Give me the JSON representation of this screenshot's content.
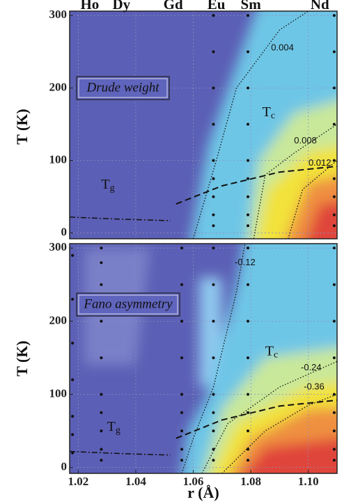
{
  "chart_data": [
    {
      "type": "contour",
      "title": "Drude weight",
      "ylabel": "T (K)",
      "xlim": [
        1.017,
        1.11
      ],
      "ylim": [
        -8,
        306
      ],
      "yticks": [
        0,
        100,
        200,
        300
      ],
      "grid": true,
      "element_labels": {
        "labels": [
          "Ho",
          "Dy",
          "Gd",
          "Eu",
          "Sm",
          "Nd"
        ],
        "x": [
          1.024,
          1.035,
          1.053,
          1.068,
          1.08,
          1.104
        ]
      },
      "contour_levels": [
        0.004,
        0.008,
        0.012
      ],
      "annotations": [
        {
          "text": "T",
          "sub": "c"
        },
        {
          "text": "T",
          "sub": "g"
        }
      ],
      "points": {
        "x": [
          1.067,
          1.067,
          1.067,
          1.067,
          1.067,
          1.067,
          1.067,
          1.067,
          1.067,
          1.079,
          1.079,
          1.079,
          1.079,
          1.079,
          1.079,
          1.079,
          1.079,
          1.079,
          1.109,
          1.109,
          1.109,
          1.109,
          1.109,
          1.109,
          1.109,
          1.109,
          1.109
        ],
        "y": [
          300,
          250,
          200,
          150,
          100,
          75,
          50,
          25,
          10,
          300,
          250,
          200,
          150,
          100,
          75,
          50,
          25,
          10,
          300,
          250,
          200,
          150,
          100,
          75,
          50,
          25,
          10
        ]
      }
    },
    {
      "type": "contour",
      "title": "Fano asymmetry",
      "ylabel": "T (K)",
      "xlabel": "r (Å)",
      "xlim": [
        1.017,
        1.11
      ],
      "ylim": [
        -8,
        306
      ],
      "xticks": [
        1.02,
        1.04,
        1.06,
        1.08,
        {
          "value": 1.1,
          "label": "1.10"
        }
      ],
      "yticks": [
        0,
        100,
        200,
        300
      ],
      "grid": true,
      "contour_levels": [
        -0.12,
        -0.24,
        -0.36
      ],
      "annotations": [
        {
          "text": "T",
          "sub": "c"
        },
        {
          "text": "T",
          "sub": "g"
        }
      ],
      "points": {
        "x": [
          1.018,
          1.018,
          1.018,
          1.018,
          1.018,
          1.018,
          1.018,
          1.028,
          1.028,
          1.028,
          1.028,
          1.028,
          1.028,
          1.028,
          1.028,
          1.028,
          1.028,
          1.056,
          1.056,
          1.056,
          1.056,
          1.056,
          1.056,
          1.056,
          1.056,
          1.056,
          1.067,
          1.067,
          1.067,
          1.067,
          1.067,
          1.067,
          1.067,
          1.067,
          1.067,
          1.079,
          1.079,
          1.079,
          1.079,
          1.079,
          1.079,
          1.079,
          1.079,
          1.079,
          1.109,
          1.109,
          1.109,
          1.109,
          1.109,
          1.109,
          1.109,
          1.109,
          1.109
        ],
        "y": [
          290,
          230,
          170,
          120,
          70,
          45,
          20,
          300,
          280,
          250,
          200,
          150,
          100,
          75,
          50,
          25,
          10,
          300,
          250,
          200,
          150,
          100,
          75,
          50,
          25,
          10,
          300,
          250,
          200,
          150,
          100,
          75,
          50,
          25,
          10,
          300,
          250,
          200,
          150,
          100,
          75,
          50,
          25,
          10,
          300,
          250,
          200,
          150,
          100,
          75,
          50,
          25,
          10
        ]
      }
    }
  ]
}
